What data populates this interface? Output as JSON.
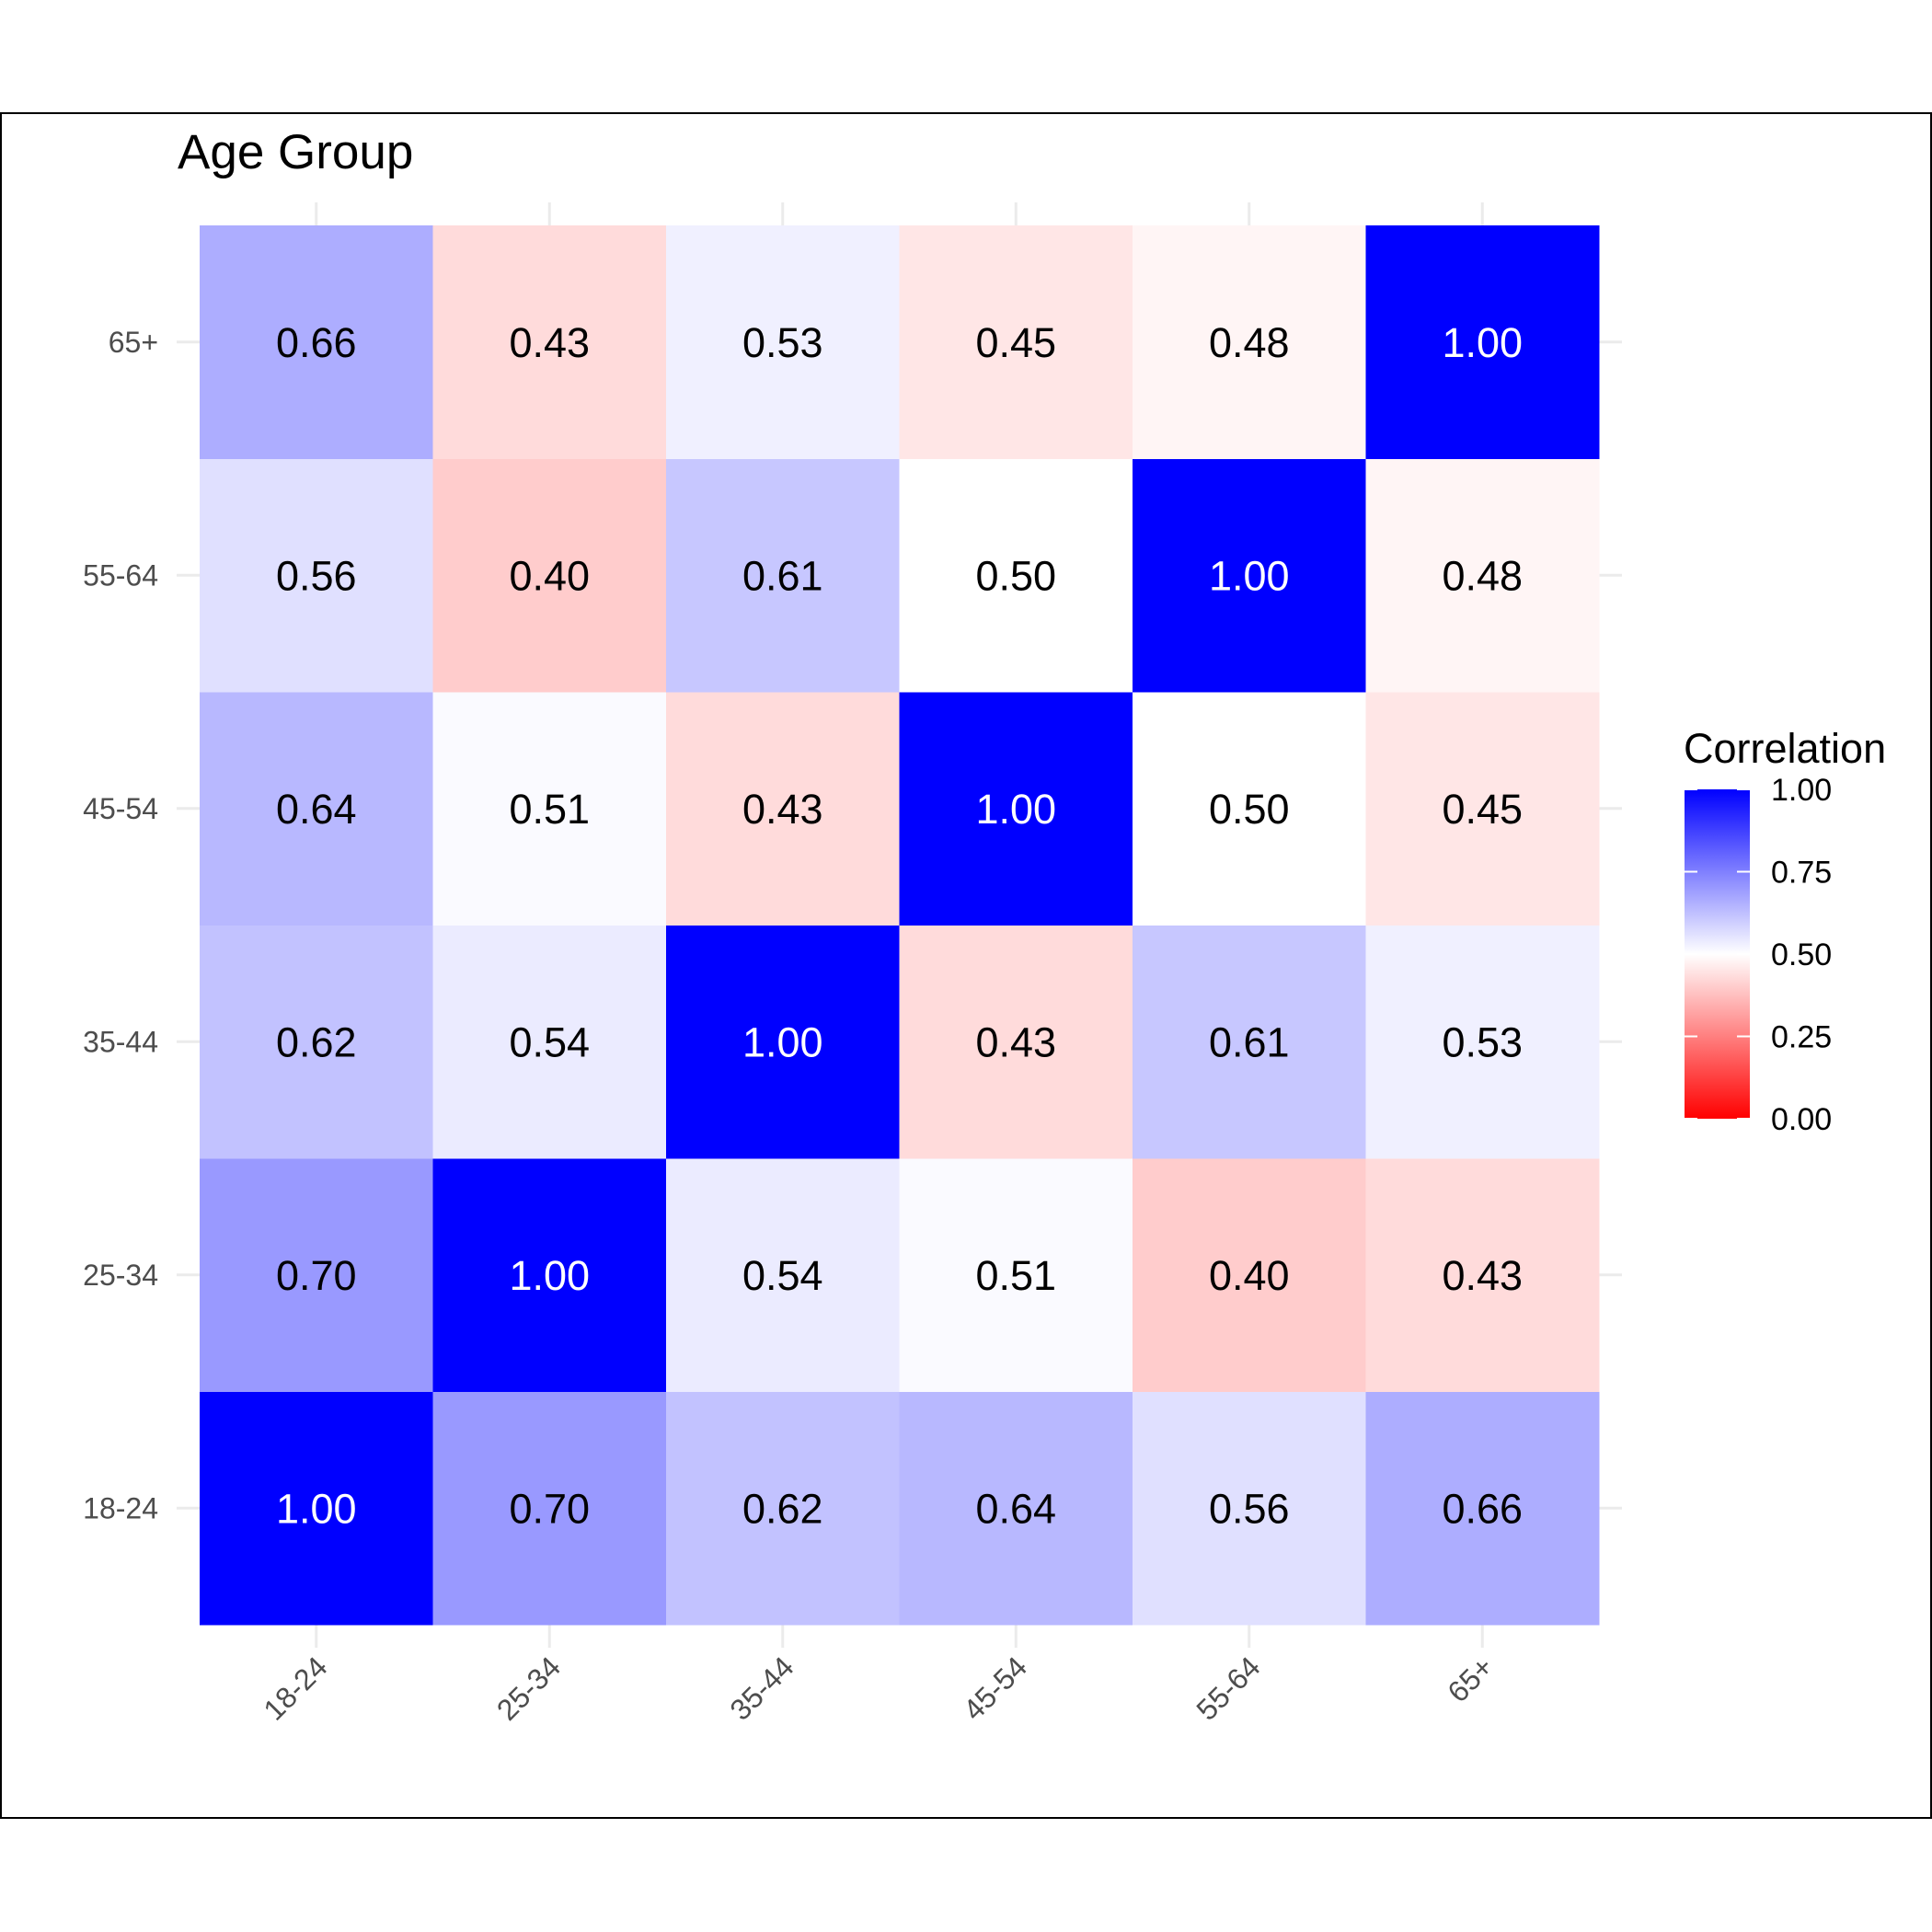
{
  "chart_data": {
    "type": "heatmap",
    "title": "Age Group",
    "xlabel": "",
    "ylabel": "",
    "x_categories": [
      "18-24",
      "25-34",
      "35-44",
      "45-54",
      "55-64",
      "65+"
    ],
    "y_categories": [
      "18-24",
      "25-34",
      "35-44",
      "45-54",
      "55-64",
      "65+"
    ],
    "values": [
      [
        1.0,
        0.7,
        0.62,
        0.64,
        0.56,
        0.66
      ],
      [
        0.7,
        1.0,
        0.54,
        0.51,
        0.4,
        0.43
      ],
      [
        0.62,
        0.54,
        1.0,
        0.43,
        0.61,
        0.53
      ],
      [
        0.64,
        0.51,
        0.43,
        1.0,
        0.5,
        0.45
      ],
      [
        0.56,
        0.4,
        0.61,
        0.5,
        1.0,
        0.48
      ],
      [
        0.66,
        0.43,
        0.53,
        0.45,
        0.48,
        1.0
      ]
    ],
    "value_format": "0.00",
    "legend": {
      "title": "Correlation",
      "position": "right",
      "ticks": [
        1.0,
        0.75,
        0.5,
        0.25,
        0.0
      ],
      "tick_labels": [
        "1.00",
        "0.75",
        "0.50",
        "0.25",
        "0.00"
      ],
      "range": [
        0,
        1
      ],
      "midpoint": 0.5
    },
    "colors": {
      "low": "#ff0000",
      "mid": "#ffffff",
      "high": "#0000ff"
    },
    "grid": true
  }
}
